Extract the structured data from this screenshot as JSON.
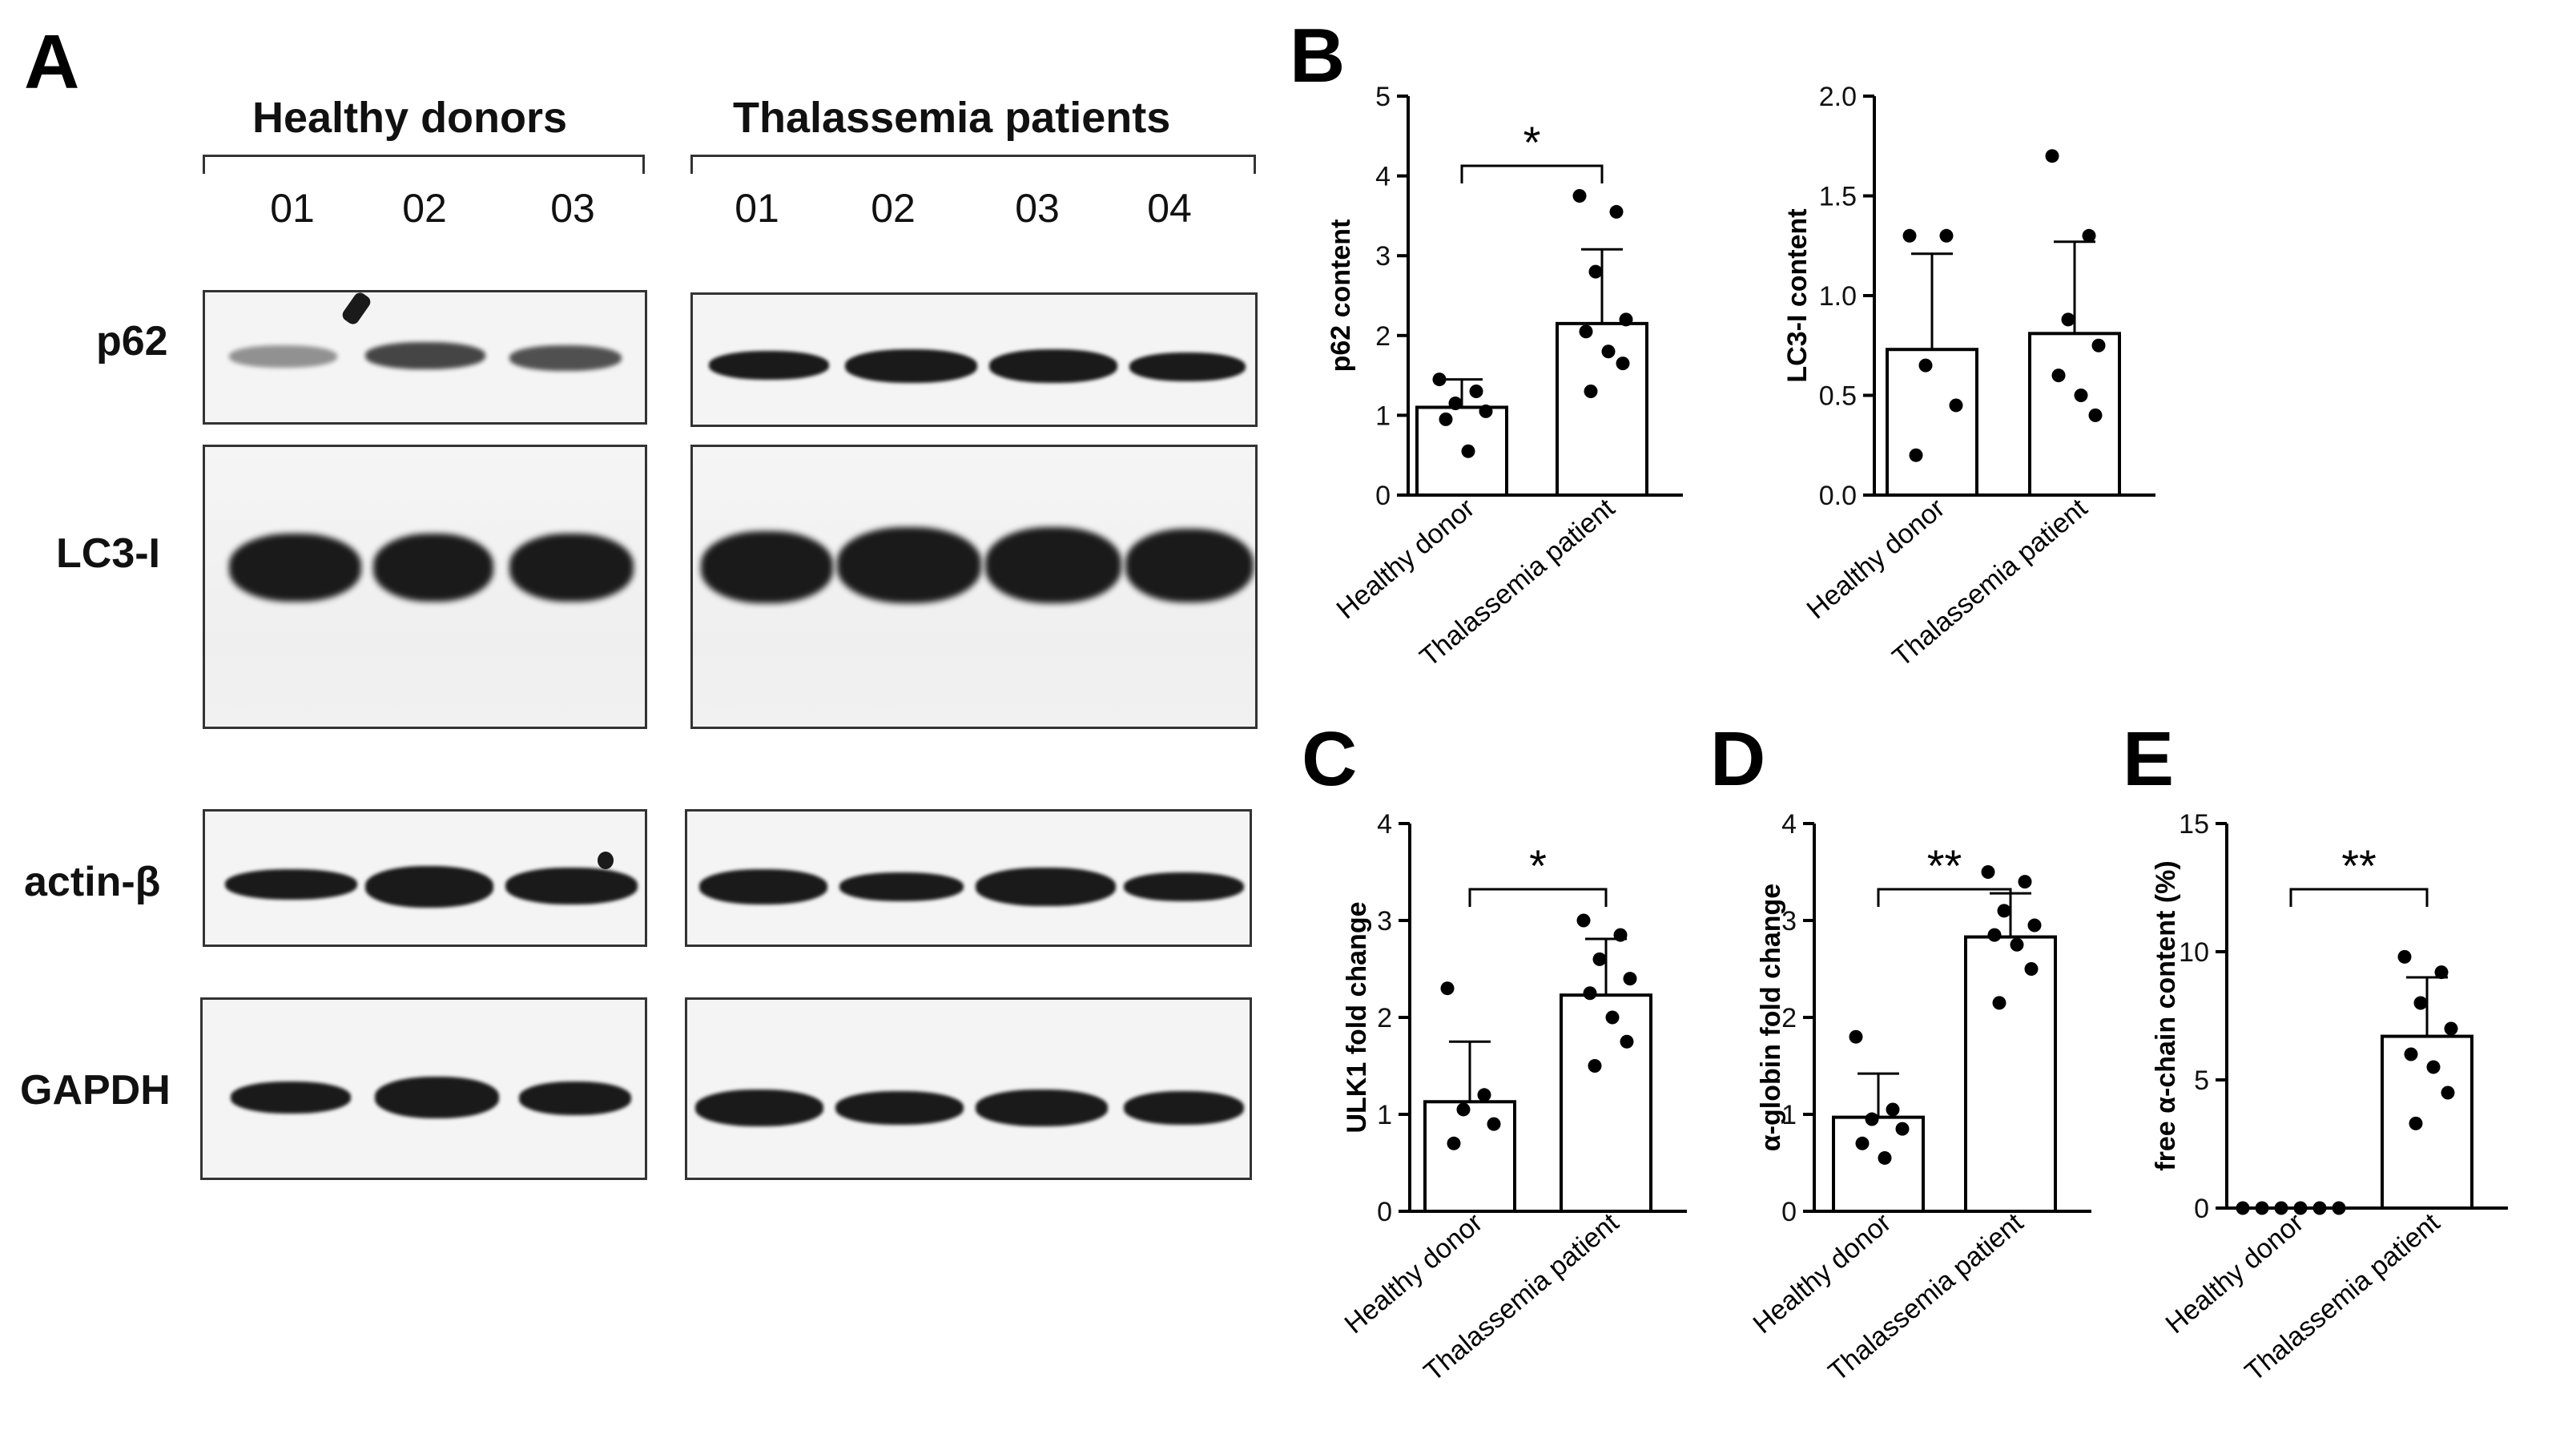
{
  "panels": {
    "A": {
      "letter": "A"
    },
    "B": {
      "letter": "B"
    },
    "C": {
      "letter": "C"
    },
    "D": {
      "letter": "D"
    },
    "E": {
      "letter": "E"
    }
  },
  "western_blot": {
    "groups": [
      {
        "label": "Healthy donors",
        "lanes": [
          "01",
          "02",
          "03"
        ]
      },
      {
        "label": "Thalassemia patients",
        "lanes": [
          "01",
          "02",
          "03",
          "04"
        ]
      }
    ],
    "proteins": [
      "p62",
      "LC3-I",
      "actin-β",
      "GAPDH"
    ]
  },
  "chart_data": [
    {
      "id": "B-p62",
      "type": "bar",
      "categories": [
        "Healthy donor",
        "Thalassemia patient"
      ],
      "values": [
        1.1,
        2.15
      ],
      "errors": [
        0.35,
        0.93
      ],
      "points": [
        [
          1.45,
          1.3,
          1.15,
          1.05,
          0.95,
          0.55
        ],
        [
          3.75,
          3.55,
          2.8,
          2.2,
          2.05,
          1.8,
          1.65,
          1.3
        ]
      ],
      "ylabel": "p62 content",
      "ylim": [
        0,
        5
      ],
      "yticks": [
        "0",
        "1",
        "2",
        "3",
        "4",
        "5"
      ],
      "significance": "*"
    },
    {
      "id": "B-LC3",
      "type": "bar",
      "categories": [
        "Healthy donor",
        "Thalassemia patient"
      ],
      "values": [
        0.73,
        0.81
      ],
      "errors": [
        0.48,
        0.46
      ],
      "points": [
        [
          1.3,
          1.3,
          0.65,
          0.45,
          0.2
        ],
        [
          1.7,
          1.3,
          0.88,
          0.75,
          0.6,
          0.5,
          0.4
        ]
      ],
      "ylabel": "LC3-I content",
      "ylim": [
        0,
        2.0
      ],
      "yticks": [
        "0.0",
        "0.5",
        "1.0",
        "1.5",
        "2.0"
      ],
      "significance": ""
    },
    {
      "id": "C",
      "type": "bar",
      "categories": [
        "Healthy donor",
        "Thalassemia patient"
      ],
      "values": [
        1.13,
        2.23
      ],
      "errors": [
        0.62,
        0.58
      ],
      "points": [
        [
          2.3,
          1.2,
          1.05,
          0.9,
          0.7
        ],
        [
          3.0,
          2.85,
          2.6,
          2.4,
          2.25,
          2.0,
          1.75,
          1.5
        ]
      ],
      "ylabel": "ULK1 fold change",
      "ylim": [
        0,
        4
      ],
      "yticks": [
        "0",
        "1",
        "2",
        "3",
        "4"
      ],
      "significance": "*"
    },
    {
      "id": "D",
      "type": "bar",
      "categories": [
        "Healthy donor",
        "Thalassemia patient"
      ],
      "values": [
        0.97,
        2.83
      ],
      "errors": [
        0.45,
        0.45
      ],
      "points": [
        [
          1.8,
          1.05,
          0.95,
          0.85,
          0.7,
          0.55
        ],
        [
          3.5,
          3.4,
          3.1,
          2.95,
          2.85,
          2.75,
          2.5,
          2.15
        ]
      ],
      "ylabel": "α-globin fold change",
      "ylim": [
        0,
        4
      ],
      "yticks": [
        "0",
        "1",
        "2",
        "3",
        "4"
      ],
      "significance": "**"
    },
    {
      "id": "E",
      "type": "bar",
      "categories": [
        "Healthy donor",
        "Thalassemia patient"
      ],
      "values": [
        0.0,
        6.7
      ],
      "errors": [
        0.0,
        2.3
      ],
      "points": [
        [
          0,
          0,
          0,
          0,
          0,
          0
        ],
        [
          9.8,
          9.2,
          8.0,
          7.0,
          6.0,
          5.5,
          4.5,
          3.3
        ]
      ],
      "ylabel": "free α-chain content (%)",
      "ylim": [
        0,
        15
      ],
      "yticks": [
        "0",
        "5",
        "10",
        "15"
      ],
      "significance": "**"
    }
  ]
}
